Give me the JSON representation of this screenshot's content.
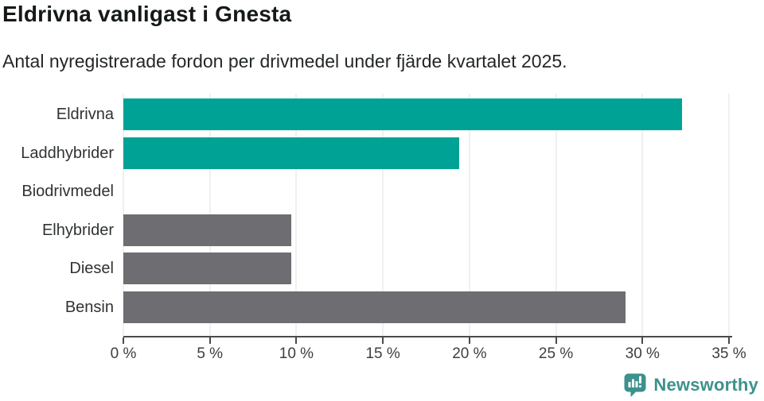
{
  "header": {
    "title": "Eldrivna vanligast i Gnesta",
    "subtitle": "Antal nyregistrerade fordon per drivmedel under fjärde kvartalet 2025."
  },
  "chart_data": {
    "type": "bar",
    "orientation": "horizontal",
    "title": "Eldrivna vanligast i Gnesta",
    "subtitle": "Antal nyregistrerade fordon per drivmedel under fjärde kvartalet 2025.",
    "categories": [
      "Eldrivna",
      "Laddhybrider",
      "Biodrivmedel",
      "Elhybrider",
      "Diesel",
      "Bensin"
    ],
    "values": [
      32.3,
      19.4,
      0,
      9.7,
      9.7,
      29.0
    ],
    "unit": "%",
    "xlim": [
      0,
      35
    ],
    "x_tick_values": [
      0,
      5,
      10,
      15,
      20,
      25,
      30,
      35
    ],
    "x_tick_labels": [
      "0 %",
      "5 %",
      "10 %",
      "15 %",
      "20 %",
      "25 %",
      "30 %",
      "35 %"
    ],
    "grid": true,
    "bar_colors": [
      "#00a296",
      "#00a296",
      "#6d6d72",
      "#6d6d72",
      "#6d6d72",
      "#6d6d72"
    ],
    "highlight_color": "#00a296",
    "default_color": "#6d6d72",
    "gridline_color": "#e0e0e0",
    "axis_color": "#4a4a4b"
  },
  "footer": {
    "brand": "Newsworthy",
    "brand_color": "#3d918c"
  }
}
